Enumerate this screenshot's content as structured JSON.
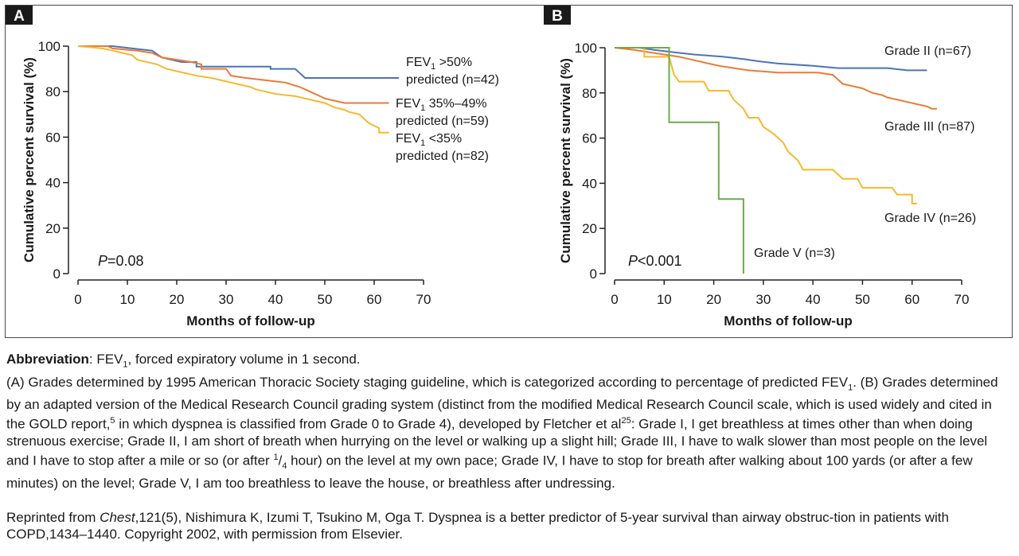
{
  "figure": {
    "panels": [
      {
        "id": "A",
        "letter": "A"
      },
      {
        "id": "B",
        "letter": "B"
      }
    ]
  },
  "chart_data": [
    {
      "panel": "A",
      "type": "line",
      "ylabel": "Cumulative percent survival (%)",
      "xlabel": "Months of follow-up",
      "xlim": [
        0,
        70
      ],
      "ylim": [
        0,
        100
      ],
      "xticks": [
        0,
        10,
        20,
        30,
        40,
        50,
        60,
        70
      ],
      "yticks": [
        0,
        20,
        40,
        60,
        80,
        100
      ],
      "annotation": {
        "p_italic": "P",
        "p_rest": "=0.08"
      },
      "grid": false,
      "series": [
        {
          "name_line1": "FEV",
          "name_sub": "1",
          "name_rest": " >50%",
          "name_line2": "predicted  (n=42)",
          "color": "#4a74b8",
          "points": [
            [
              0,
              100
            ],
            [
              7,
              100
            ],
            [
              15,
              98
            ],
            [
              17,
              95
            ],
            [
              21,
              93
            ],
            [
              24,
              93
            ],
            [
              24,
              91
            ],
            [
              39,
              91
            ],
            [
              39,
              90
            ],
            [
              44,
              90
            ],
            [
              45,
              88
            ],
            [
              46,
              86
            ],
            [
              65,
              86
            ]
          ]
        },
        {
          "name_line1": "FEV",
          "name_sub": "1",
          "name_rest": " 35%–49%",
          "name_line2": "predicted (n=59)",
          "color": "#ec7a35",
          "points": [
            [
              0,
              100
            ],
            [
              6,
              100
            ],
            [
              7,
              99
            ],
            [
              12,
              98
            ],
            [
              15,
              97
            ],
            [
              17,
              95
            ],
            [
              23,
              93
            ],
            [
              25,
              92
            ],
            [
              25,
              90
            ],
            [
              30,
              90
            ],
            [
              31,
              87
            ],
            [
              34,
              86
            ],
            [
              38,
              85
            ],
            [
              42,
              84
            ],
            [
              45,
              82
            ],
            [
              47,
              80
            ],
            [
              49,
              78
            ],
            [
              50,
              77
            ],
            [
              52,
              76
            ],
            [
              54,
              75
            ],
            [
              63,
              75
            ]
          ]
        },
        {
          "name_line1": "FEV",
          "name_sub": "1",
          "name_rest": " <35%",
          "name_line2": "predicted (n=82)",
          "color": "#f7b82f",
          "points": [
            [
              0,
              100
            ],
            [
              5,
              99
            ],
            [
              7,
              98
            ],
            [
              9,
              97
            ],
            [
              11,
              96
            ],
            [
              12,
              94
            ],
            [
              14,
              93
            ],
            [
              16,
              92
            ],
            [
              18,
              90
            ],
            [
              20,
              89
            ],
            [
              22,
              88
            ],
            [
              24,
              87
            ],
            [
              27,
              86
            ],
            [
              29,
              85
            ],
            [
              31,
              84
            ],
            [
              33,
              83
            ],
            [
              35,
              82
            ],
            [
              36,
              81
            ],
            [
              38,
              80
            ],
            [
              40,
              79
            ],
            [
              44,
              78
            ],
            [
              46,
              77
            ],
            [
              48,
              76
            ],
            [
              50,
              75
            ],
            [
              52,
              73
            ],
            [
              54,
              72
            ],
            [
              55,
              71
            ],
            [
              57,
              70
            ],
            [
              58,
              68
            ],
            [
              59,
              66
            ],
            [
              60,
              65
            ],
            [
              61,
              64
            ],
            [
              61,
              62
            ],
            [
              63,
              62
            ]
          ]
        }
      ]
    },
    {
      "panel": "B",
      "type": "line",
      "ylabel": "Cumulative percent survival (%)",
      "xlabel": "Months of follow-up",
      "xlim": [
        0,
        70
      ],
      "ylim": [
        0,
        100
      ],
      "xticks": [
        0,
        10,
        20,
        30,
        40,
        50,
        60,
        70
      ],
      "yticks": [
        0,
        20,
        40,
        60,
        80,
        100
      ],
      "annotation": {
        "p_italic": "P",
        "p_rest": "<0.001"
      },
      "grid": false,
      "series": [
        {
          "name": "Grade II (n=67)",
          "color": "#4a74b8",
          "points": [
            [
              0,
              100
            ],
            [
              5,
              100
            ],
            [
              8,
              99
            ],
            [
              12,
              98
            ],
            [
              16,
              97
            ],
            [
              22,
              96
            ],
            [
              26,
              95
            ],
            [
              29,
              94
            ],
            [
              33,
              93
            ],
            [
              40,
              92
            ],
            [
              45,
              91
            ],
            [
              55,
              91
            ],
            [
              59,
              90
            ],
            [
              63,
              90
            ]
          ]
        },
        {
          "name": "Grade III (n=87)",
          "color": "#ec7a35",
          "points": [
            [
              0,
              100
            ],
            [
              4,
              99
            ],
            [
              7,
              98
            ],
            [
              10,
              97
            ],
            [
              13,
              96
            ],
            [
              15,
              95
            ],
            [
              17,
              94
            ],
            [
              19,
              93
            ],
            [
              21,
              92
            ],
            [
              24,
              91
            ],
            [
              27,
              90
            ],
            [
              33,
              89
            ],
            [
              41,
              89
            ],
            [
              44,
              88
            ],
            [
              45,
              86
            ],
            [
              46,
              84
            ],
            [
              48,
              83
            ],
            [
              50,
              82
            ],
            [
              51,
              81
            ],
            [
              52,
              80
            ],
            [
              54,
              79
            ],
            [
              55,
              78
            ],
            [
              57,
              77
            ],
            [
              59,
              76
            ],
            [
              61,
              75
            ],
            [
              63,
              74
            ],
            [
              64,
              73
            ],
            [
              65,
              73
            ]
          ]
        },
        {
          "name": "Grade IV (n=26)",
          "color": "#f7b82f",
          "points": [
            [
              0,
              100
            ],
            [
              6,
              100
            ],
            [
              6,
              96
            ],
            [
              11,
              96
            ],
            [
              12,
              88
            ],
            [
              13,
              85
            ],
            [
              18,
              85
            ],
            [
              19,
              81
            ],
            [
              23,
              81
            ],
            [
              24,
              77
            ],
            [
              26,
              73
            ],
            [
              27,
              69
            ],
            [
              29,
              69
            ],
            [
              30,
              65
            ],
            [
              32,
              62
            ],
            [
              34,
              58
            ],
            [
              35,
              54
            ],
            [
              37,
              50
            ],
            [
              38,
              46
            ],
            [
              44,
              46
            ],
            [
              46,
              42
            ],
            [
              49,
              42
            ],
            [
              50,
              38
            ],
            [
              56,
              38
            ],
            [
              57,
              35
            ],
            [
              60,
              35
            ],
            [
              60,
              31
            ],
            [
              61,
              31
            ]
          ]
        },
        {
          "name": "Grade V (n=3)",
          "color": "#6dac46",
          "points": [
            [
              0,
              100
            ],
            [
              11,
              100
            ],
            [
              11,
              67
            ],
            [
              21,
              67
            ],
            [
              21,
              33
            ],
            [
              26,
              33
            ],
            [
              26,
              0
            ]
          ]
        }
      ]
    }
  ],
  "captions": {
    "abbreviation": {
      "label": "Abbreviation",
      "text_pre": ": FEV",
      "sub": "1",
      "text_post": ", forced expiratory volume in 1 second."
    },
    "grades_paragraph": {
      "t1": "(A) Grades determined by 1995 American Thoracic Society staging guideline, which is categorized according to percentage of predicted FEV",
      "sub1": "1",
      "t2": ". (B) Grades determined by an adapted version of the Medical Research Council grading system (distinct from the modified Medical Research Council scale, which is used widely and cited in the GOLD report,",
      "sup1": "5",
      "t3": " in which dyspnea is classified from Grade 0 to Grade 4), developed by Fletcher et al",
      "sup2": "25",
      "t4": ": Grade I, I get breathless at times other than when doing strenuous exercise; Grade II, I am short of breath when hurrying on the level or walking up a slight hill; Grade III, I have to walk slower than most people on the level and I have to stop after a mile or so (or after ",
      "frac_num": "1",
      "frac_sep": "/",
      "frac_den": "4",
      "t5": " hour) on the level at my own pace; Grade IV, I have to stop for breath after walking about 100 yards (or after a few minutes) on the level; Grade V, I am too breathless to leave the house, or breathless after undressing."
    },
    "reprint": {
      "t1": "Reprinted from ",
      "journal": "Chest",
      "t2": ",121(5), Nishimura K, Izumi T, Tsukino M, Oga T. Dyspnea is a better predictor of 5-year survival than airway obstruc-tion in patients with COPD,1434–1440. Copyright 2002, with permission from Elsevier."
    }
  }
}
